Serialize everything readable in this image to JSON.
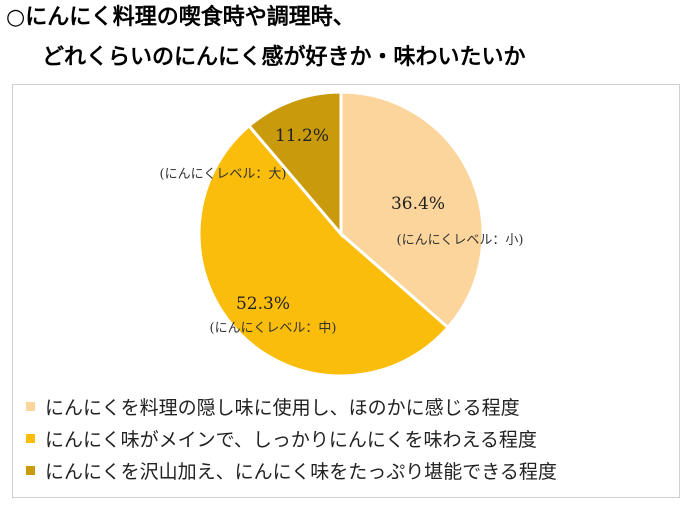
{
  "title": {
    "line1": "○にんにく料理の喫食時や調理時、",
    "line2": "どれくらいのにんにく感が好きか・味わいたいか"
  },
  "chart_data": {
    "type": "pie",
    "title": "○にんにく料理の喫食時や調理時、どれくらいのにんにく感が好きか・味わいたいか",
    "categories": [
      "にんにくを料理の隠し味に使用し、ほのかに感じる程度",
      "にんにく味がメインで、しっかりにんにくを味わえる程度",
      "にんにくを沢山加え、にんにく味をたっぷり堪能できる程度"
    ],
    "values": [
      36.4,
      52.3,
      11.2
    ],
    "value_labels": [
      "36.4%",
      "52.3%",
      "11.2%"
    ],
    "slice_labels": [
      "(にんにくレベル：小)",
      "(にんにくレベル：中)",
      "(にんにくレベル：大)"
    ],
    "colors": [
      "#fcd59c",
      "#fbbd0c",
      "#c99a0b"
    ],
    "start": "12 o'clock",
    "direction": "clockwise",
    "legend": "bottom"
  }
}
